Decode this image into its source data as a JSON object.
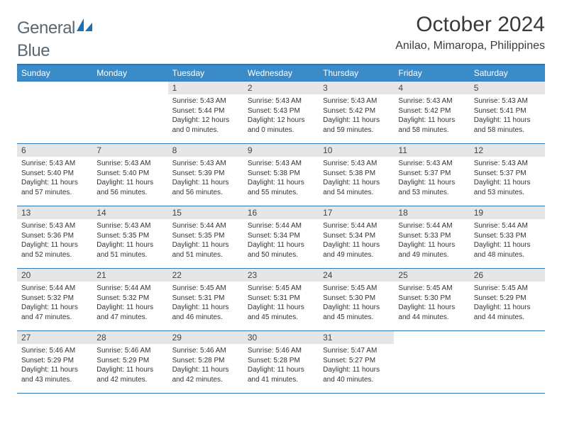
{
  "brand": {
    "name_part1": "General",
    "name_part2": "Blue"
  },
  "title": "October 2024",
  "location": "Anilao, Mimaropa, Philippines",
  "colors": {
    "header_bg": "#3b8bc9",
    "border": "#2e75b6",
    "daynum_bg": "#e6e6e6",
    "text": "#333333",
    "logo_gray": "#5a6770",
    "logo_blue": "#1a6fb5"
  },
  "day_headers": [
    "Sunday",
    "Monday",
    "Tuesday",
    "Wednesday",
    "Thursday",
    "Friday",
    "Saturday"
  ],
  "weeks": [
    [
      null,
      null,
      {
        "n": "1",
        "sr": "5:43 AM",
        "ss": "5:44 PM",
        "dl": "12 hours and 0 minutes."
      },
      {
        "n": "2",
        "sr": "5:43 AM",
        "ss": "5:43 PM",
        "dl": "12 hours and 0 minutes."
      },
      {
        "n": "3",
        "sr": "5:43 AM",
        "ss": "5:42 PM",
        "dl": "11 hours and 59 minutes."
      },
      {
        "n": "4",
        "sr": "5:43 AM",
        "ss": "5:42 PM",
        "dl": "11 hours and 58 minutes."
      },
      {
        "n": "5",
        "sr": "5:43 AM",
        "ss": "5:41 PM",
        "dl": "11 hours and 58 minutes."
      }
    ],
    [
      {
        "n": "6",
        "sr": "5:43 AM",
        "ss": "5:40 PM",
        "dl": "11 hours and 57 minutes."
      },
      {
        "n": "7",
        "sr": "5:43 AM",
        "ss": "5:40 PM",
        "dl": "11 hours and 56 minutes."
      },
      {
        "n": "8",
        "sr": "5:43 AM",
        "ss": "5:39 PM",
        "dl": "11 hours and 56 minutes."
      },
      {
        "n": "9",
        "sr": "5:43 AM",
        "ss": "5:38 PM",
        "dl": "11 hours and 55 minutes."
      },
      {
        "n": "10",
        "sr": "5:43 AM",
        "ss": "5:38 PM",
        "dl": "11 hours and 54 minutes."
      },
      {
        "n": "11",
        "sr": "5:43 AM",
        "ss": "5:37 PM",
        "dl": "11 hours and 53 minutes."
      },
      {
        "n": "12",
        "sr": "5:43 AM",
        "ss": "5:37 PM",
        "dl": "11 hours and 53 minutes."
      }
    ],
    [
      {
        "n": "13",
        "sr": "5:43 AM",
        "ss": "5:36 PM",
        "dl": "11 hours and 52 minutes."
      },
      {
        "n": "14",
        "sr": "5:43 AM",
        "ss": "5:35 PM",
        "dl": "11 hours and 51 minutes."
      },
      {
        "n": "15",
        "sr": "5:44 AM",
        "ss": "5:35 PM",
        "dl": "11 hours and 51 minutes."
      },
      {
        "n": "16",
        "sr": "5:44 AM",
        "ss": "5:34 PM",
        "dl": "11 hours and 50 minutes."
      },
      {
        "n": "17",
        "sr": "5:44 AM",
        "ss": "5:34 PM",
        "dl": "11 hours and 49 minutes."
      },
      {
        "n": "18",
        "sr": "5:44 AM",
        "ss": "5:33 PM",
        "dl": "11 hours and 49 minutes."
      },
      {
        "n": "19",
        "sr": "5:44 AM",
        "ss": "5:33 PM",
        "dl": "11 hours and 48 minutes."
      }
    ],
    [
      {
        "n": "20",
        "sr": "5:44 AM",
        "ss": "5:32 PM",
        "dl": "11 hours and 47 minutes."
      },
      {
        "n": "21",
        "sr": "5:44 AM",
        "ss": "5:32 PM",
        "dl": "11 hours and 47 minutes."
      },
      {
        "n": "22",
        "sr": "5:45 AM",
        "ss": "5:31 PM",
        "dl": "11 hours and 46 minutes."
      },
      {
        "n": "23",
        "sr": "5:45 AM",
        "ss": "5:31 PM",
        "dl": "11 hours and 45 minutes."
      },
      {
        "n": "24",
        "sr": "5:45 AM",
        "ss": "5:30 PM",
        "dl": "11 hours and 45 minutes."
      },
      {
        "n": "25",
        "sr": "5:45 AM",
        "ss": "5:30 PM",
        "dl": "11 hours and 44 minutes."
      },
      {
        "n": "26",
        "sr": "5:45 AM",
        "ss": "5:29 PM",
        "dl": "11 hours and 44 minutes."
      }
    ],
    [
      {
        "n": "27",
        "sr": "5:46 AM",
        "ss": "5:29 PM",
        "dl": "11 hours and 43 minutes."
      },
      {
        "n": "28",
        "sr": "5:46 AM",
        "ss": "5:29 PM",
        "dl": "11 hours and 42 minutes."
      },
      {
        "n": "29",
        "sr": "5:46 AM",
        "ss": "5:28 PM",
        "dl": "11 hours and 42 minutes."
      },
      {
        "n": "30",
        "sr": "5:46 AM",
        "ss": "5:28 PM",
        "dl": "11 hours and 41 minutes."
      },
      {
        "n": "31",
        "sr": "5:47 AM",
        "ss": "5:27 PM",
        "dl": "11 hours and 40 minutes."
      },
      null,
      null
    ]
  ],
  "labels": {
    "sunrise": "Sunrise:",
    "sunset": "Sunset:",
    "daylight": "Daylight:"
  }
}
